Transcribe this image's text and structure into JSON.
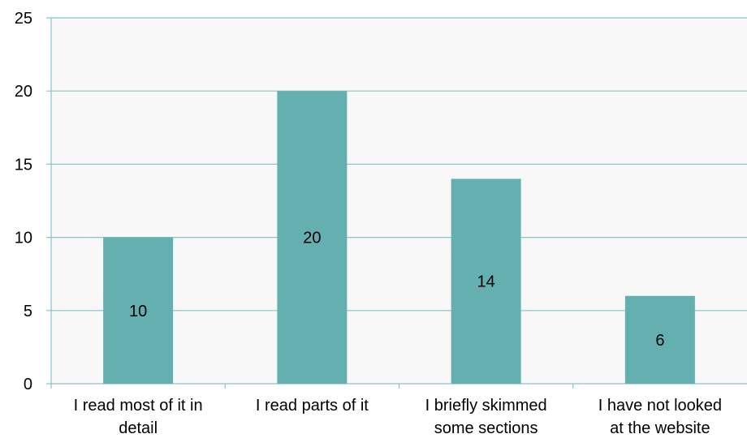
{
  "chart_data": {
    "type": "bar",
    "categories": [
      [
        "I read most of it in",
        "detail"
      ],
      [
        "I read parts of it"
      ],
      [
        "I briefly skimmed",
        "some sections"
      ],
      [
        "I have not looked",
        "at the website"
      ]
    ],
    "values": [
      10,
      20,
      14,
      6
    ],
    "data_labels": [
      "10",
      "20",
      "14",
      "6"
    ],
    "yticks": [
      "0",
      "5",
      "10",
      "15",
      "20",
      "25"
    ],
    "ylim": [
      0,
      25
    ],
    "grid": true,
    "bar_color": "#64afb0",
    "grid_color": "#88c4c5",
    "title": "",
    "xlabel": "",
    "ylabel": ""
  }
}
